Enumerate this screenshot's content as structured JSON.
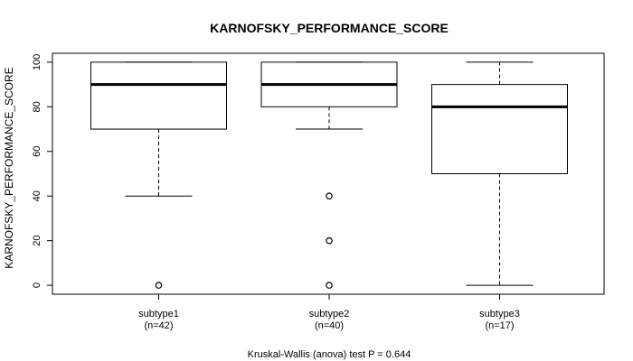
{
  "chart_data": {
    "type": "boxplot",
    "title": "KARNOFSKY_PERFORMANCE_SCORE",
    "ylabel": "KARNOFSKY_PERFORMANCE_SCORE",
    "xlabel": "",
    "footer": "Kruskal-Wallis (anova) test P = 0.644",
    "ylim": [
      -4,
      104
    ],
    "yticks": [
      0,
      20,
      40,
      60,
      80,
      100
    ],
    "grid": false,
    "groups": [
      {
        "name": "subtype1",
        "n_label": "(n=42)",
        "whisker_low": 40,
        "q1": 70,
        "median": 90,
        "q3": 100,
        "whisker_high": 100,
        "outliers": [
          0
        ]
      },
      {
        "name": "subtype2",
        "n_label": "(n=40)",
        "whisker_low": 70,
        "q1": 80,
        "median": 90,
        "q3": 100,
        "whisker_high": 100,
        "outliers": [
          40,
          20,
          0
        ]
      },
      {
        "name": "subtype3",
        "n_label": "(n=17)",
        "whisker_low": 0,
        "q1": 50,
        "median": 80,
        "q3": 90,
        "whisker_high": 100,
        "outliers": []
      }
    ]
  }
}
